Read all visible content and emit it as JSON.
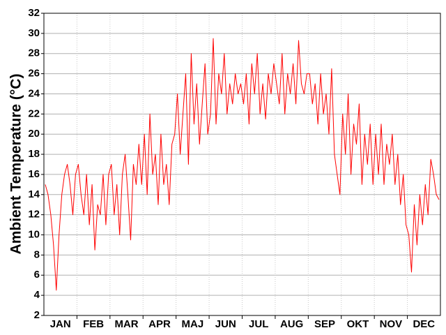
{
  "chart_data": {
    "type": "line",
    "y_label": "Ambient Temperature (°C)",
    "categories": [
      "JAN",
      "FEB",
      "MAR",
      "APR",
      "MAJ",
      "JUN",
      "JUL",
      "AUG",
      "SEP",
      "OKT",
      "NOV",
      "DEC"
    ],
    "values": [
      [
        15,
        14,
        12,
        9,
        4.5,
        10,
        14,
        16,
        17,
        15,
        12,
        16
      ],
      [
        17,
        14,
        12,
        16,
        11,
        15,
        8.5,
        13,
        12,
        16,
        11,
        16
      ],
      [
        17,
        12,
        15,
        10,
        16,
        18,
        14,
        9.5,
        17,
        15,
        19,
        15
      ],
      [
        20,
        14,
        22,
        16,
        18,
        13,
        20,
        15,
        17,
        13,
        19,
        20
      ],
      [
        24,
        18,
        22,
        26,
        17,
        28,
        21,
        25,
        19,
        23,
        27,
        20
      ],
      [
        22,
        29.5,
        21,
        26,
        24,
        28,
        22,
        25,
        23,
        26,
        24,
        25
      ],
      [
        23,
        26,
        21,
        27,
        24,
        28,
        22,
        25,
        21.5,
        26,
        24,
        27
      ],
      [
        25,
        23,
        28,
        22,
        26,
        24,
        27,
        23,
        29.3,
        25,
        24,
        26
      ],
      [
        26,
        23,
        25,
        21,
        26,
        22,
        24,
        20,
        26.5,
        18,
        16,
        14
      ],
      [
        22,
        18,
        24,
        16,
        21,
        19,
        23,
        15,
        20,
        17,
        21,
        15
      ],
      [
        20,
        16,
        21,
        15,
        19,
        17,
        20,
        15,
        18,
        13,
        16,
        11
      ],
      [
        10,
        6.3,
        13,
        9,
        14,
        11,
        15,
        12,
        17.5,
        16,
        14,
        13.5
      ]
    ],
    "color": "#ff0000",
    "ylim": [
      2,
      32
    ],
    "yticks": [
      2,
      4,
      6,
      8,
      10,
      12,
      14,
      16,
      18,
      20,
      22,
      24,
      26,
      28,
      30,
      32
    ],
    "grid": true
  }
}
